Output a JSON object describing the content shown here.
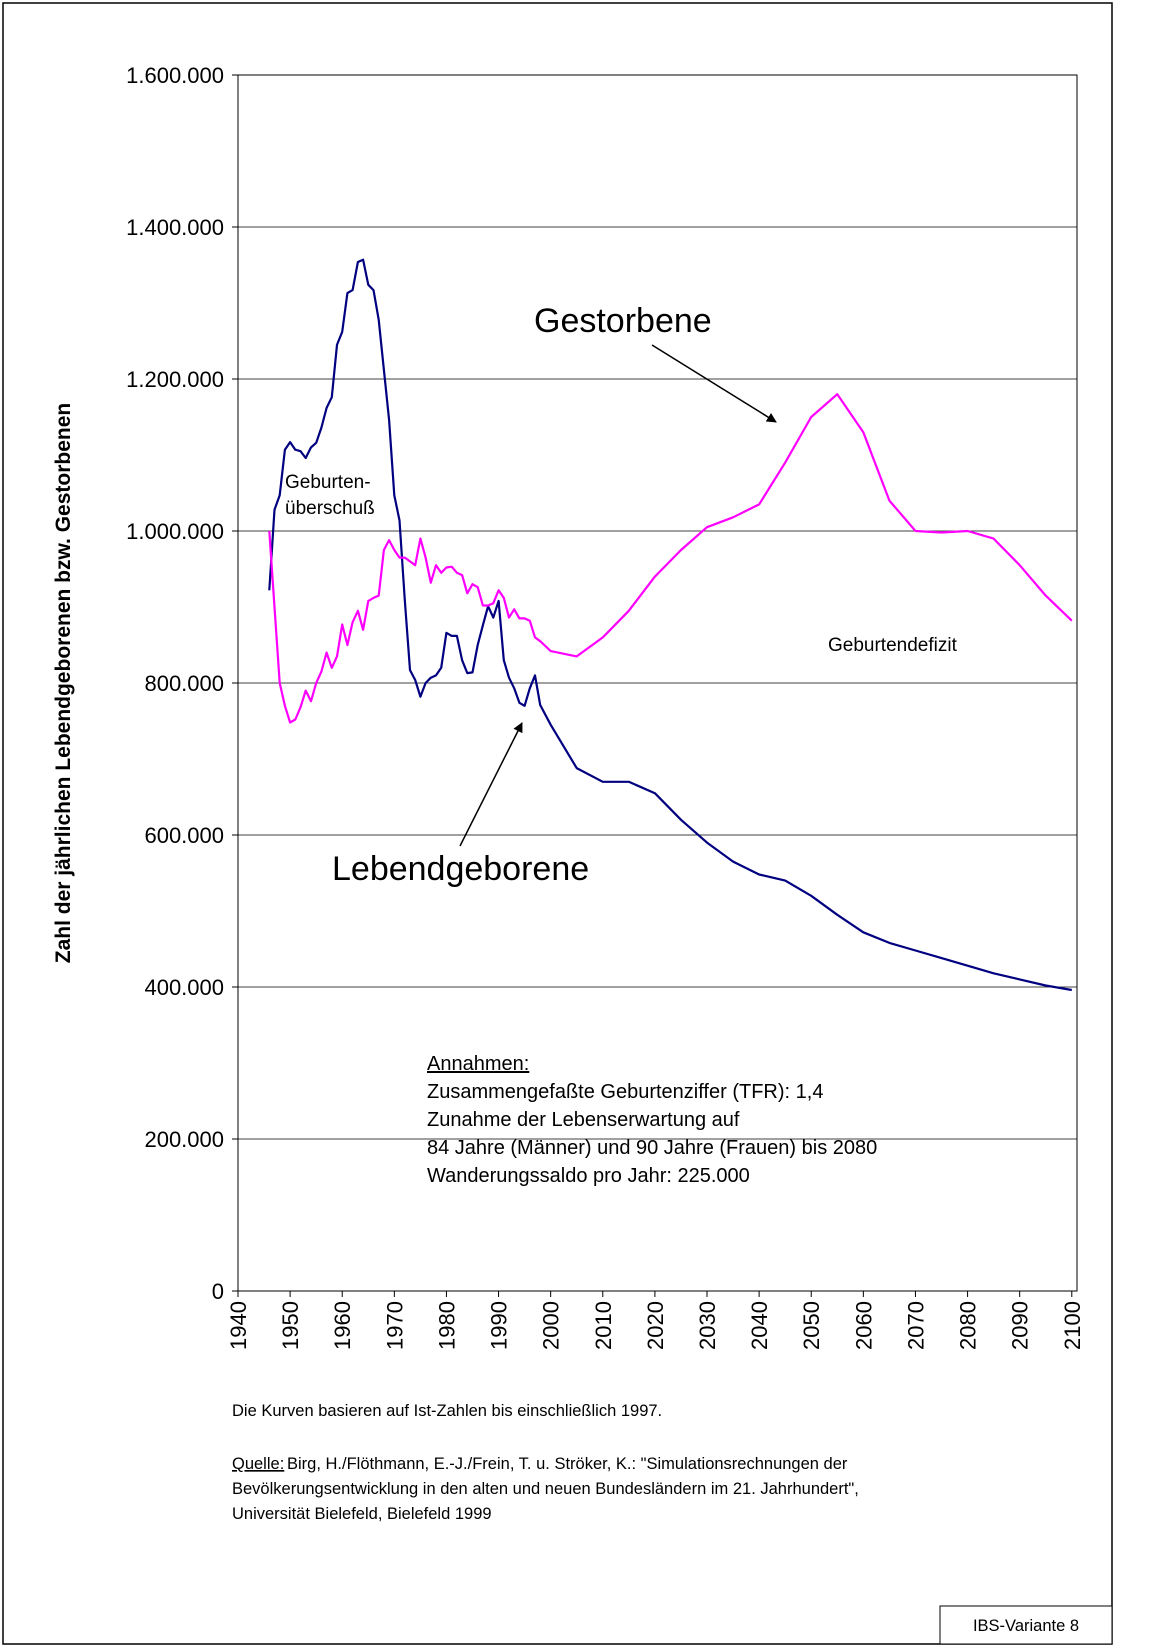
{
  "chart_data": {
    "type": "line",
    "ylabel": "Zahl der jährlichen Lebendgeborenen bzw. Gestorbenen",
    "x": [
      1946,
      1947,
      1948,
      1949,
      1950,
      1951,
      1952,
      1953,
      1954,
      1955,
      1956,
      1957,
      1958,
      1959,
      1960,
      1961,
      1962,
      1963,
      1964,
      1965,
      1966,
      1967,
      1968,
      1969,
      1970,
      1971,
      1972,
      1973,
      1974,
      1975,
      1976,
      1977,
      1978,
      1979,
      1980,
      1981,
      1982,
      1983,
      1984,
      1985,
      1986,
      1987,
      1988,
      1989,
      1990,
      1991,
      1992,
      1993,
      1994,
      1995,
      1996,
      1997,
      1998,
      2000,
      2005,
      2010,
      2015,
      2020,
      2025,
      2030,
      2035,
      2040,
      2045,
      2050,
      2055,
      2060,
      2065,
      2070,
      2075,
      2080,
      2085,
      2090,
      2095,
      2100
    ],
    "series": [
      {
        "name": "Lebendgeborene",
        "color": "#000080",
        "values": [
          922000,
          1028000,
          1047000,
          1107000,
          1117000,
          1107000,
          1105000,
          1096000,
          1110000,
          1116000,
          1136000,
          1162000,
          1176000,
          1245000,
          1262000,
          1313000,
          1317000,
          1354000,
          1357000,
          1324000,
          1317000,
          1278000,
          1212000,
          1146000,
          1047000,
          1014000,
          909000,
          817000,
          804000,
          782000,
          800000,
          807000,
          810000,
          820000,
          866000,
          862000,
          862000,
          830000,
          813000,
          814000,
          850000,
          876000,
          901000,
          886000,
          908000,
          830000,
          807000,
          793000,
          774000,
          770000,
          793000,
          810000,
          771000,
          745000,
          688000,
          670000,
          670000,
          655000,
          620000,
          590000,
          565000,
          548000,
          540000,
          520000,
          495000,
          472000,
          458000,
          448000,
          438000,
          428000,
          418000,
          410000,
          402000,
          396000
        ]
      },
      {
        "name": "Gestorbene",
        "color": "#ff00ff",
        "values": [
          1000000,
          900000,
          800000,
          770000,
          748000,
          752000,
          768000,
          790000,
          776000,
          800000,
          815000,
          840000,
          820000,
          835000,
          877000,
          850000,
          880000,
          895000,
          870000,
          908000,
          912000,
          915000,
          975000,
          988000,
          975000,
          965000,
          965000,
          960000,
          955000,
          990000,
          965000,
          932000,
          955000,
          945000,
          952000,
          953000,
          945000,
          942000,
          918000,
          930000,
          926000,
          902000,
          902000,
          905000,
          922000,
          912000,
          886000,
          897000,
          885000,
          885000,
          882000,
          860000,
          855000,
          842000,
          835000,
          860000,
          895000,
          940000,
          975000,
          1005000,
          1018000,
          1035000,
          1090000,
          1150000,
          1180000,
          1130000,
          1040000,
          1000000,
          998000,
          1000000,
          990000,
          955000,
          915000,
          882000
        ]
      }
    ],
    "xlim": [
      1940,
      2101
    ],
    "xticks": [
      1940,
      1950,
      1960,
      1970,
      1980,
      1990,
      2000,
      2010,
      2020,
      2030,
      2040,
      2050,
      2060,
      2070,
      2080,
      2090,
      2100
    ],
    "ylim": [
      0,
      1600000
    ],
    "yticks": [
      0,
      {
        "value": 200000,
        "label": "200.000"
      },
      {
        "value": 400000,
        "label": "400.000"
      },
      {
        "value": 600000,
        "label": "600.000"
      },
      {
        "value": 800000,
        "label": "800.000"
      },
      {
        "value": 1000000,
        "label": "1.000.000"
      },
      {
        "value": 1200000,
        "label": "1.200.000"
      },
      {
        "value": 1400000,
        "label": "1.400.000"
      },
      {
        "value": 1600000,
        "label": "1.600.000"
      }
    ],
    "grid": true,
    "annotations": {
      "surplus": [
        "Geburten-",
        "überschuß"
      ],
      "deficit": "Geburtendefizit"
    },
    "assumptions": {
      "heading": "Annahmen:",
      "lines": [
        "Zusammengefaßte Geburtenziffer (TFR): 1,4",
        "Zunahme der Lebenserwartung auf",
        "84 Jahre (Männer) und 90 Jahre (Frauen) bis 2080",
        "Wanderungssaldo pro Jahr: 225.000"
      ]
    },
    "note": "Die Kurven basieren auf Ist-Zahlen bis einschließlich 1997.",
    "source": {
      "label": "Quelle:",
      "lines": [
        "Birg, H./Flöthmann, E.-J./Frein, T. u. Ströker, K.: \"Simulationsrechnungen der",
        "Bevölkerungsentwicklung in den alten und neuen Bundesländern im 21. Jahrhundert\",",
        "Universität Bielefeld, Bielefeld 1999"
      ]
    },
    "badge": "IBS-Variante 8"
  }
}
